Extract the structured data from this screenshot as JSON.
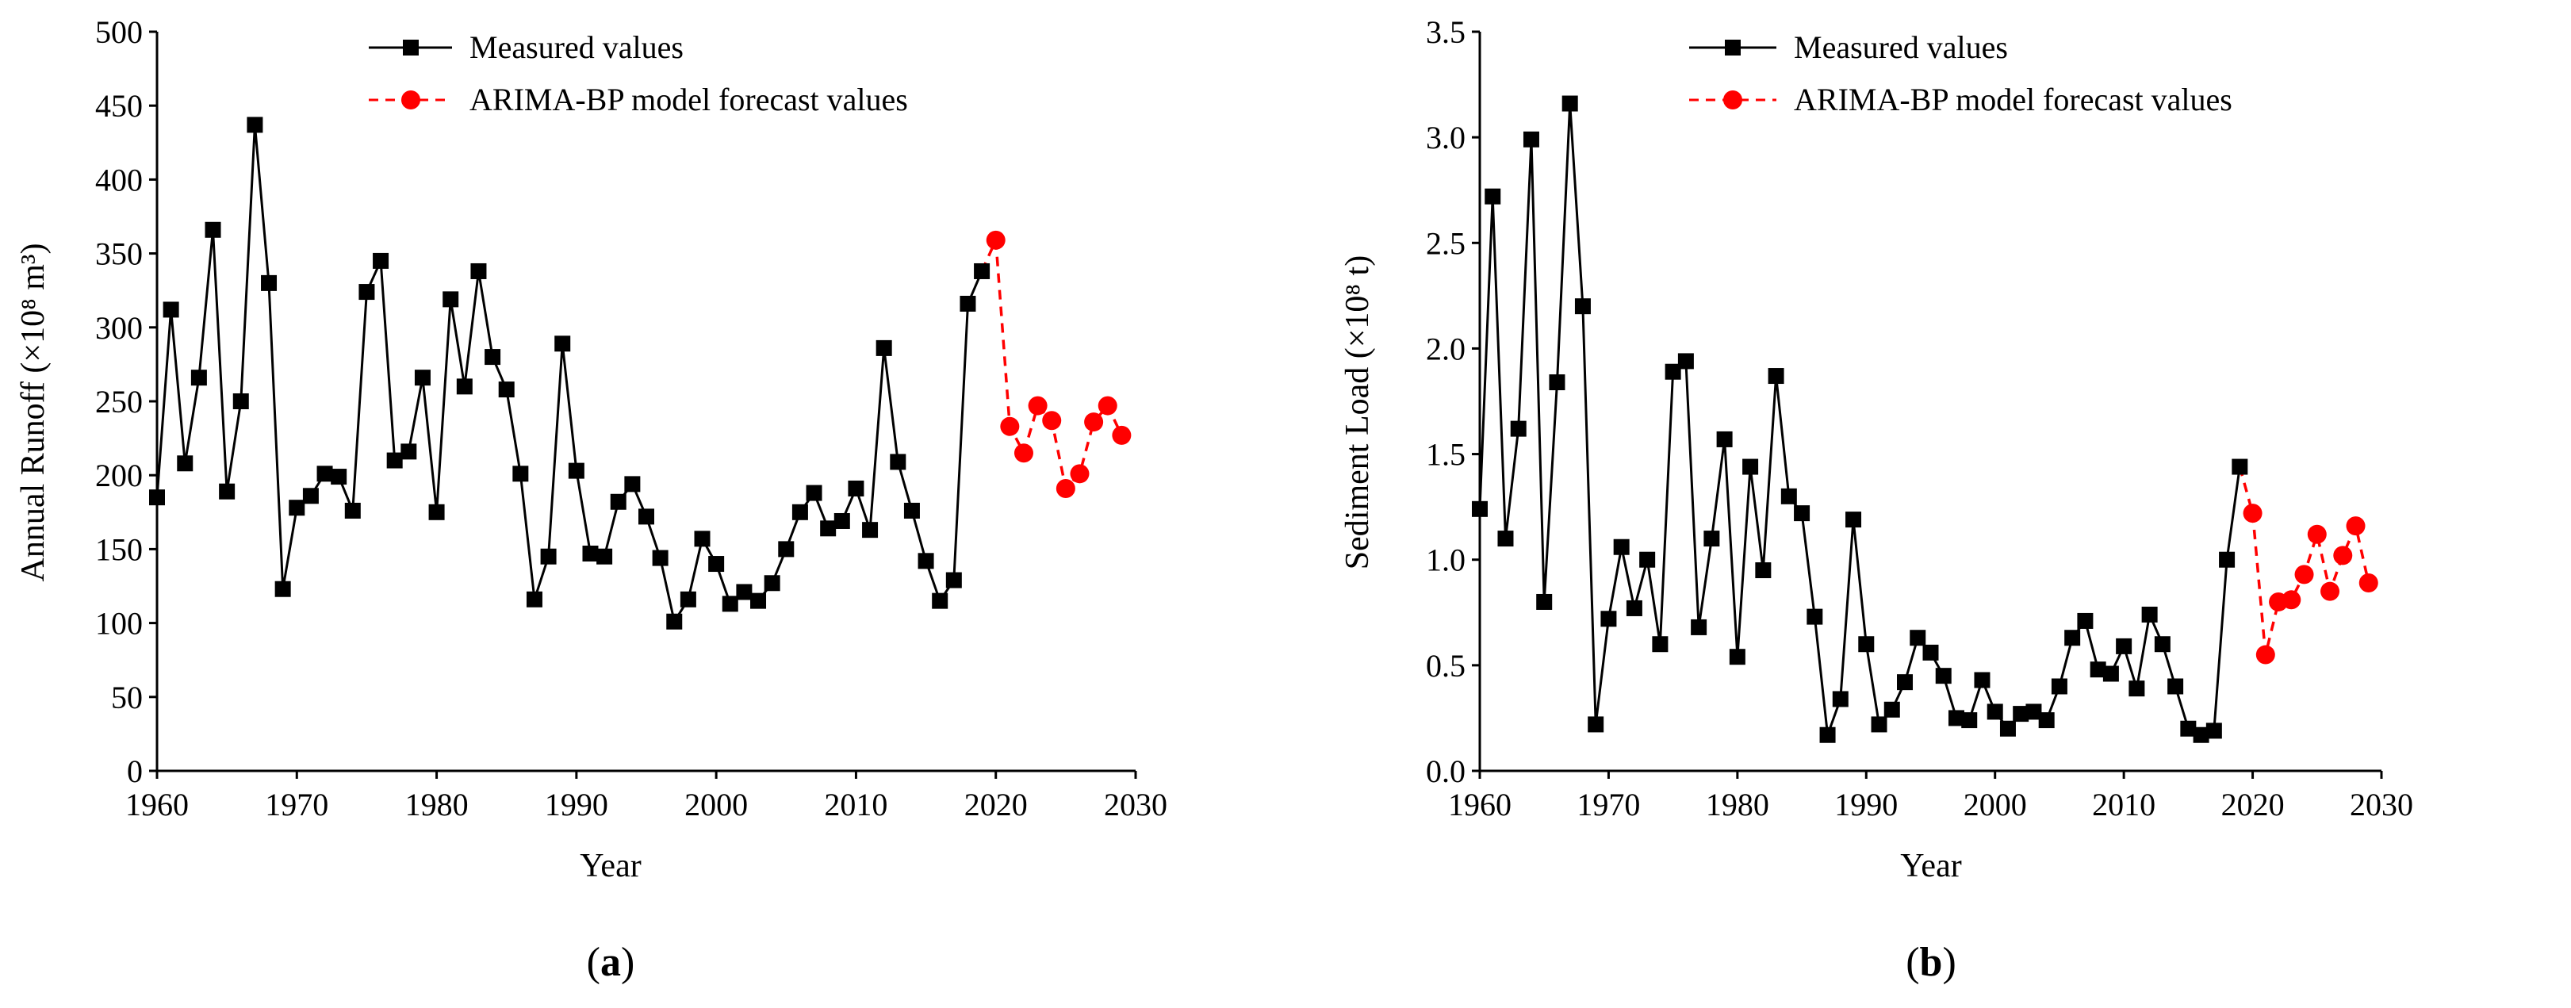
{
  "chart_data": [
    {
      "type": "line",
      "panel_label": "a",
      "title": "",
      "xlabel": "Year",
      "ylabel": "Annual Runoff (×10⁸ m³)",
      "xlim": [
        1960,
        2030
      ],
      "ylim": [
        0,
        500
      ],
      "x_ticks": [
        "1960",
        "1970",
        "1980",
        "1990",
        "2000",
        "2010",
        "2020",
        "2030"
      ],
      "y_ticks": [
        "0",
        "50",
        "100",
        "150",
        "200",
        "250",
        "300",
        "350",
        "400",
        "450",
        "500"
      ],
      "legend": "top-center",
      "grid": false,
      "series": [
        {
          "name": "Measured values",
          "color": "#000000",
          "style": "solid",
          "marker": "square",
          "x": [
            1960,
            1961,
            1962,
            1963,
            1964,
            1965,
            1966,
            1967,
            1968,
            1969,
            1970,
            1971,
            1972,
            1973,
            1974,
            1975,
            1976,
            1977,
            1978,
            1979,
            1980,
            1981,
            1982,
            1983,
            1984,
            1985,
            1986,
            1987,
            1988,
            1989,
            1990,
            1991,
            1992,
            1993,
            1994,
            1995,
            1996,
            1997,
            1998,
            1999,
            2000,
            2001,
            2002,
            2003,
            2004,
            2005,
            2006,
            2007,
            2008,
            2009,
            2010,
            2011,
            2012,
            2013,
            2014,
            2015,
            2016,
            2017,
            2018,
            2019
          ],
          "values": [
            185,
            312,
            208,
            266,
            366,
            189,
            250,
            437,
            330,
            123,
            178,
            186,
            201,
            199,
            176,
            324,
            345,
            210,
            216,
            266,
            175,
            319,
            260,
            338,
            280,
            258,
            201,
            116,
            145,
            289,
            203,
            147,
            145,
            182,
            194,
            172,
            144,
            101,
            116,
            157,
            140,
            113,
            121,
            115,
            127,
            150,
            175,
            188,
            164,
            169,
            191,
            163,
            286,
            209,
            176,
            142,
            115,
            129,
            316,
            338
          ]
        },
        {
          "name": "ARIMA-BP model forecast values",
          "color": "#ff0000",
          "style": "dashed",
          "marker": "circle",
          "x": [
            2020,
            2021,
            2022,
            2023,
            2024,
            2025,
            2026,
            2027,
            2028,
            2029
          ],
          "values": [
            359,
            233,
            215,
            247,
            237,
            191,
            201,
            236,
            247,
            227
          ]
        }
      ]
    },
    {
      "type": "line",
      "panel_label": "b",
      "title": "",
      "xlabel": "Year",
      "ylabel": "Sediment Load (×10⁸ t)",
      "xlim": [
        1960,
        2030
      ],
      "ylim": [
        0,
        3.5
      ],
      "x_ticks": [
        "1960",
        "1970",
        "1980",
        "1990",
        "2000",
        "2010",
        "2020",
        "2030"
      ],
      "y_ticks": [
        "0.0",
        "0.5",
        "1.0",
        "1.5",
        "2.0",
        "2.5",
        "3.0",
        "3.5"
      ],
      "legend": "top-center",
      "grid": false,
      "series": [
        {
          "name": "Measured values",
          "color": "#000000",
          "style": "solid",
          "marker": "square",
          "x": [
            1960,
            1961,
            1962,
            1963,
            1964,
            1965,
            1966,
            1967,
            1968,
            1969,
            1970,
            1971,
            1972,
            1973,
            1974,
            1975,
            1976,
            1977,
            1978,
            1979,
            1980,
            1981,
            1982,
            1983,
            1984,
            1985,
            1986,
            1987,
            1988,
            1989,
            1990,
            1991,
            1992,
            1993,
            1994,
            1995,
            1996,
            1997,
            1998,
            1999,
            2000,
            2001,
            2002,
            2003,
            2004,
            2005,
            2006,
            2007,
            2008,
            2009,
            2010,
            2011,
            2012,
            2013,
            2014,
            2015,
            2016,
            2017,
            2018,
            2019
          ],
          "values": [
            1.24,
            2.72,
            1.1,
            1.62,
            2.99,
            0.8,
            1.84,
            3.16,
            2.2,
            0.22,
            0.72,
            1.06,
            0.77,
            1.0,
            0.6,
            1.89,
            1.94,
            0.68,
            1.1,
            1.57,
            0.54,
            1.44,
            0.95,
            1.87,
            1.3,
            1.22,
            0.73,
            0.17,
            0.34,
            1.19,
            0.6,
            0.22,
            0.29,
            0.42,
            0.63,
            0.56,
            0.45,
            0.25,
            0.24,
            0.43,
            0.28,
            0.2,
            0.27,
            0.28,
            0.24,
            0.4,
            0.63,
            0.71,
            0.48,
            0.46,
            0.59,
            0.39,
            0.74,
            0.6,
            0.4,
            0.2,
            0.17,
            0.19,
            1.0,
            1.44
          ]
        },
        {
          "name": "ARIMA-BP model forecast values",
          "color": "#ff0000",
          "style": "dashed",
          "marker": "circle",
          "x": [
            2020,
            2021,
            2022,
            2023,
            2024,
            2025,
            2026,
            2027,
            2028,
            2029
          ],
          "values": [
            1.22,
            0.55,
            0.8,
            0.81,
            0.93,
            1.12,
            0.85,
            1.02,
            1.16,
            0.89
          ]
        }
      ]
    }
  ]
}
